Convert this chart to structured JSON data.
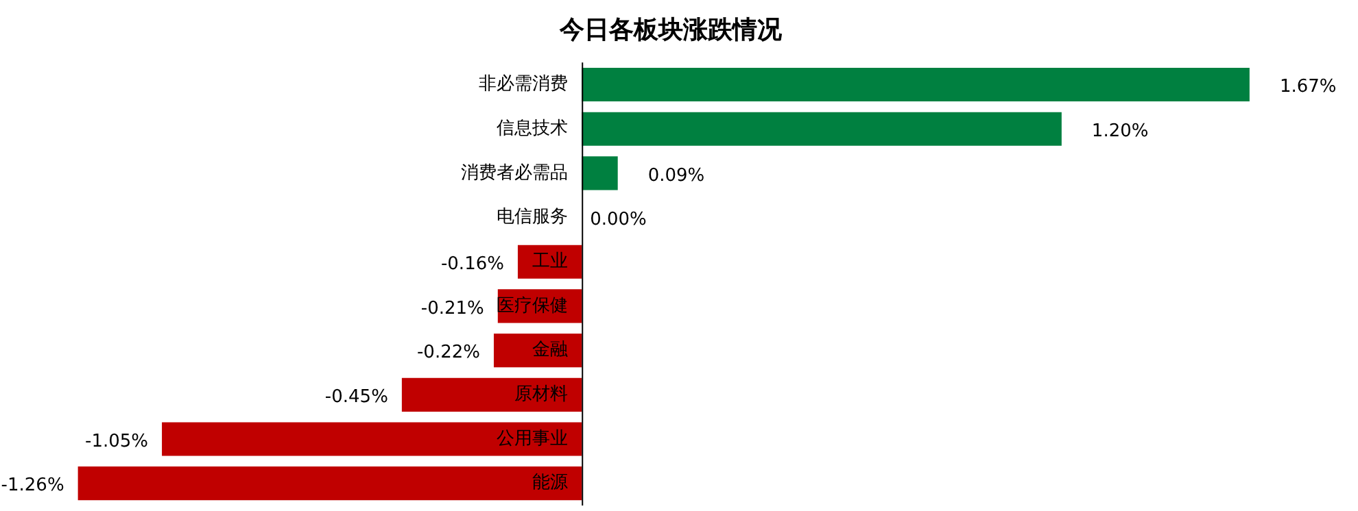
{
  "chart_data": {
    "type": "bar",
    "orientation": "horizontal",
    "title": "今日各板块涨跌情况",
    "categories": [
      "非必需消费",
      "信息技术",
      "消费者必需品",
      "电信服务",
      "工业",
      "医疗保健",
      "金融",
      "原材料",
      "公用事业",
      "能源"
    ],
    "values": [
      1.67,
      1.2,
      0.09,
      0.0,
      -0.16,
      -0.21,
      -0.22,
      -0.45,
      -1.05,
      -1.26
    ],
    "colors": [
      "#008040",
      "#008040",
      "#008040",
      "#008040",
      "#c00000",
      "#c00000",
      "#c00000",
      "#c00000",
      "#c00000",
      "#c00000"
    ],
    "value_labels": [
      "1.67%",
      "1.20%",
      "0.09%",
      "0.00%",
      "-0.16%",
      "-0.21%",
      "-0.22%",
      "-0.45%",
      "-1.05%",
      "-1.26%"
    ],
    "tick_labels": "y",
    "legend": false
  }
}
